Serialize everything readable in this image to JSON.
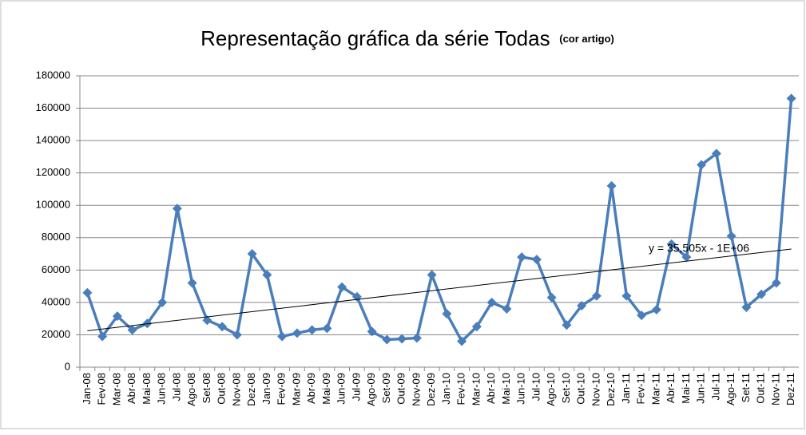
{
  "chart_data": {
    "type": "line",
    "title": "Representação gráfica da série Todas",
    "subtitle": "(cor artigo)",
    "categories": [
      "Jan-08",
      "Fev-08",
      "Mar-08",
      "Abr-08",
      "Mai-08",
      "Jun-08",
      "Jul-08",
      "Ago-08",
      "Set-08",
      "Out-08",
      "Nov-08",
      "Dez-08",
      "Jan-09",
      "Fev-09",
      "Mar-09",
      "Abr-09",
      "Mai-09",
      "Jun-09",
      "Jul-09",
      "Ago-09",
      "Set-09",
      "Out-09",
      "Nov-09",
      "Dez-09",
      "Jan-10",
      "Fev-10",
      "Mar-10",
      "Abr-10",
      "Mai-10",
      "Jun-10",
      "Jul-10",
      "Ago-10",
      "Set-10",
      "Out-10",
      "Nov-10",
      "Dez-10",
      "Jan-11",
      "Fev-11",
      "Mar-11",
      "Abr-11",
      "Mai-11",
      "Jun-11",
      "Jul-11",
      "Ago-11",
      "Set-11",
      "Out-11",
      "Nov-11",
      "Dez-11"
    ],
    "series": [
      {
        "name": "Todas",
        "color": "#4a7ebb",
        "values": [
          46000,
          19000,
          31500,
          23000,
          27000,
          40000,
          98000,
          52000,
          29000,
          25000,
          20000,
          70000,
          57000,
          19000,
          21000,
          23000,
          24000,
          49500,
          43500,
          22000,
          17000,
          17500,
          18000,
          57000,
          33000,
          16000,
          25000,
          40000,
          36000,
          68000,
          66500,
          43000,
          26000,
          38000,
          44000,
          112000,
          44000,
          32000,
          35500,
          76000,
          68000,
          125000,
          132000,
          81000,
          37000,
          45000,
          52000,
          166000
        ]
      }
    ],
    "trendline": {
      "start": 22500,
      "end": 73000,
      "label": "y = 35,505x - 1E+06",
      "color": "#000000"
    },
    "ylim": [
      0,
      180000
    ],
    "yticks": [
      0,
      20000,
      40000,
      60000,
      80000,
      100000,
      120000,
      140000,
      160000,
      180000
    ],
    "grid": true
  }
}
